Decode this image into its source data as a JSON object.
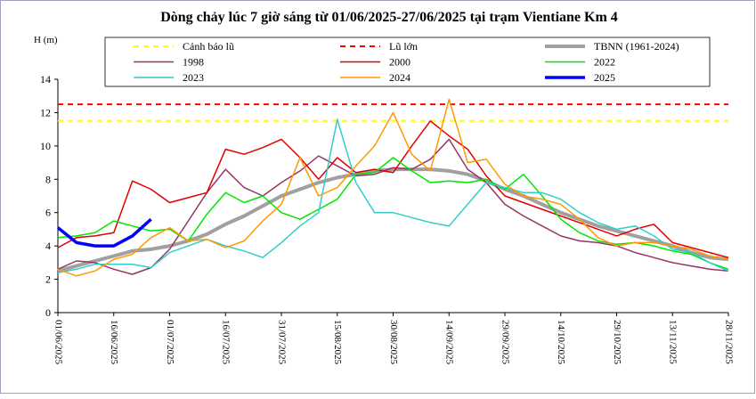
{
  "chart_data": {
    "type": "line",
    "title": "Dòng chảy lúc 7 giờ sáng từ 01/06/2025-27/06/2025 tại trạm Vientiane Km 4",
    "y_label": "H (m)",
    "x": [
      "01/06/2025",
      null,
      null,
      "16/06/2025",
      null,
      null,
      "01/07/2025",
      null,
      null,
      "16/07/2025",
      null,
      null,
      "31/07/2025",
      null,
      null,
      "15/08/2025",
      null,
      null,
      "30/08/2025",
      null,
      null,
      "14/09/2025",
      null,
      null,
      "29/09/2025",
      null,
      null,
      "14/10/2025",
      null,
      null,
      "29/10/2025",
      null,
      null,
      "13/11/2025",
      null,
      null,
      "28/11/2025"
    ],
    "ylim": [
      0,
      14
    ],
    "yticks": [
      0,
      2,
      4,
      6,
      8,
      10,
      12,
      14
    ],
    "reference_lines": [
      {
        "name": "Cảnh báo lũ",
        "value": 11.5,
        "color": "#ffff00"
      },
      {
        "name": "Lũ lớn",
        "value": 12.5,
        "color": "#ff0000"
      }
    ],
    "series": [
      {
        "name": "TBNN (1961-2024)",
        "color": "#a0a0a0",
        "values": [
          2.5,
          2.8,
          3.1,
          3.4,
          3.7,
          3.8,
          4.0,
          4.3,
          4.7,
          5.3,
          5.8,
          6.4,
          7.0,
          7.4,
          7.8,
          8.1,
          8.3,
          8.5,
          8.6,
          8.6,
          8.6,
          8.5,
          8.3,
          7.9,
          7.4,
          7.0,
          6.5,
          6.0,
          5.6,
          5.2,
          4.9,
          4.6,
          4.3,
          4.0,
          3.6,
          3.3,
          3.2
        ]
      },
      {
        "name": "1998",
        "color": "#993366",
        "values": [
          2.6,
          3.1,
          3.0,
          2.6,
          2.3,
          2.7,
          3.8,
          5.5,
          7.2,
          8.6,
          7.5,
          7.0,
          7.8,
          8.5,
          9.4,
          8.8,
          8.2,
          8.3,
          8.7,
          8.6,
          9.2,
          10.4,
          8.6,
          7.8,
          6.5,
          5.8,
          5.2,
          4.6,
          4.3,
          4.2,
          4.0,
          3.6,
          3.3,
          3.0,
          2.8,
          2.6,
          2.5
        ]
      },
      {
        "name": "2000",
        "color": "#e00000",
        "values": [
          3.9,
          4.5,
          4.6,
          4.8,
          7.9,
          7.4,
          6.6,
          6.9,
          7.2,
          9.8,
          9.5,
          9.9,
          10.4,
          9.3,
          8.0,
          9.3,
          8.4,
          8.6,
          8.4,
          10.0,
          11.5,
          10.6,
          9.8,
          8.2,
          7.0,
          6.6,
          6.2,
          5.8,
          5.4,
          5.0,
          4.6,
          5.0,
          5.3,
          4.2,
          3.9,
          3.6,
          3.3
        ]
      },
      {
        "name": "2022",
        "color": "#00e600",
        "values": [
          4.5,
          4.6,
          4.8,
          5.5,
          5.2,
          4.9,
          5.0,
          4.3,
          5.9,
          7.2,
          6.6,
          7.0,
          6.0,
          5.6,
          6.2,
          6.8,
          8.3,
          8.4,
          9.3,
          8.5,
          7.8,
          7.9,
          7.8,
          8.0,
          7.4,
          8.3,
          7.0,
          5.6,
          4.8,
          4.3,
          4.1,
          4.2,
          4.0,
          3.7,
          3.5,
          3.0,
          2.6
        ]
      },
      {
        "name": "2023",
        "color": "#33cccc",
        "values": [
          2.4,
          2.6,
          2.9,
          2.9,
          2.9,
          2.7,
          3.6,
          4.0,
          4.4,
          4.0,
          3.7,
          3.3,
          4.2,
          5.2,
          6.0,
          11.6,
          7.8,
          6.0,
          6.0,
          5.7,
          5.4,
          5.2,
          6.5,
          7.8,
          7.5,
          7.2,
          7.2,
          6.8,
          6.0,
          5.4,
          5.0,
          5.2,
          4.6,
          3.8,
          3.6,
          3.0,
          2.5
        ]
      },
      {
        "name": "2024",
        "color": "#ff9900",
        "values": [
          2.6,
          2.2,
          2.5,
          3.2,
          3.5,
          4.5,
          5.1,
          4.3,
          4.4,
          3.9,
          4.3,
          5.5,
          6.5,
          9.3,
          7.0,
          7.5,
          8.8,
          10.0,
          12.0,
          9.5,
          8.5,
          12.8,
          9.0,
          9.2,
          7.7,
          7.0,
          6.8,
          6.5,
          5.6,
          4.5,
          4.0,
          4.2,
          4.2,
          4.0,
          3.8,
          3.4,
          3.2
        ]
      },
      {
        "name": "2025",
        "color": "#0000ff",
        "values": [
          5.1,
          4.2,
          4.0,
          4.0,
          4.6,
          5.6,
          null,
          null,
          null,
          null,
          null,
          null,
          null,
          null,
          null,
          null,
          null,
          null,
          null,
          null,
          null,
          null,
          null,
          null,
          null,
          null,
          null,
          null,
          null,
          null,
          null,
          null,
          null,
          null,
          null,
          null,
          null
        ]
      }
    ]
  }
}
